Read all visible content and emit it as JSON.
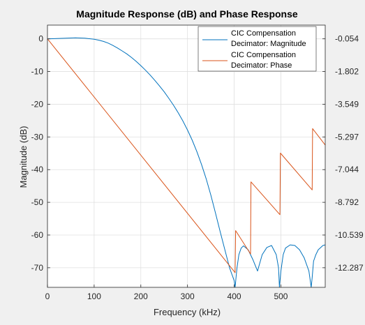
{
  "chart_data": {
    "type": "line",
    "title": "Magnitude Response (dB) and Phase Response",
    "xlabel": "Frequency (kHz)",
    "ylabel": "Magnitude (dB)",
    "y2label": "",
    "xlim": [
      0,
      595
    ],
    "ylim": [
      -76,
      4.2
    ],
    "x_ticks": [
      0,
      100,
      200,
      300,
      400,
      500
    ],
    "y_ticks": [
      0,
      -10,
      -20,
      -30,
      -40,
      -50,
      -60,
      -70
    ],
    "y2_ticks": [
      -0.054,
      -1.802,
      -3.549,
      -5.297,
      -7.044,
      -8.792,
      -10.539,
      -12.287
    ],
    "grid": true,
    "legend_position": "top-right",
    "colors": {
      "magnitude": "#0072bd",
      "phase": "#d95319",
      "grid": "#dfdfdf",
      "axes": "#262626"
    },
    "series": [
      {
        "name": "CIC Compensation Decimator: Magnitude",
        "axis": "left",
        "x": [
          0,
          20,
          40,
          60,
          80,
          100,
          110,
          120,
          130,
          140,
          150,
          160,
          170,
          180,
          190,
          200,
          210,
          220,
          230,
          240,
          250,
          260,
          270,
          280,
          290,
          300,
          310,
          320,
          330,
          340,
          350,
          360,
          370,
          380,
          390,
          400,
          402,
          404,
          406,
          410,
          415,
          420,
          430,
          440,
          450,
          460,
          470,
          480,
          490,
          495,
          497,
          500,
          505,
          510,
          520,
          530,
          540,
          550,
          560,
          565,
          567,
          570,
          575,
          580,
          590,
          595
        ],
        "y": [
          0.0,
          0.1,
          0.2,
          0.3,
          0.2,
          -0.1,
          -0.4,
          -0.8,
          -1.3,
          -2.0,
          -2.8,
          -3.7,
          -4.6,
          -5.7,
          -6.9,
          -8.2,
          -9.6,
          -11.1,
          -12.7,
          -14.4,
          -16.2,
          -18.2,
          -20.3,
          -22.6,
          -25.1,
          -27.9,
          -31.0,
          -34.5,
          -38.4,
          -42.8,
          -47.8,
          -53.3,
          -59.0,
          -64.5,
          -70.0,
          -74.0,
          -76.0,
          -73.0,
          -70.0,
          -66.0,
          -64.0,
          -63.3,
          -64.5,
          -67.5,
          -71.0,
          -66.0,
          -63.8,
          -63.2,
          -66.0,
          -70.0,
          -76.0,
          -71.0,
          -66.0,
          -64.0,
          -63.0,
          -63.2,
          -64.5,
          -67.0,
          -71.0,
          -76.0,
          -73.0,
          -68.0,
          -66.0,
          -64.5,
          -63.2,
          -63.0
        ]
      },
      {
        "name": "CIC Compensation Decimator: Phase",
        "axis": "right",
        "x": [
          0,
          402,
          403,
          435,
          436,
          498,
          499,
          567,
          568,
          595
        ],
        "y": [
          -0.054,
          -12.55,
          -10.3,
          -11.55,
          -7.7,
          -9.45,
          -6.16,
          -8.13,
          -4.85,
          -5.73
        ]
      }
    ]
  }
}
